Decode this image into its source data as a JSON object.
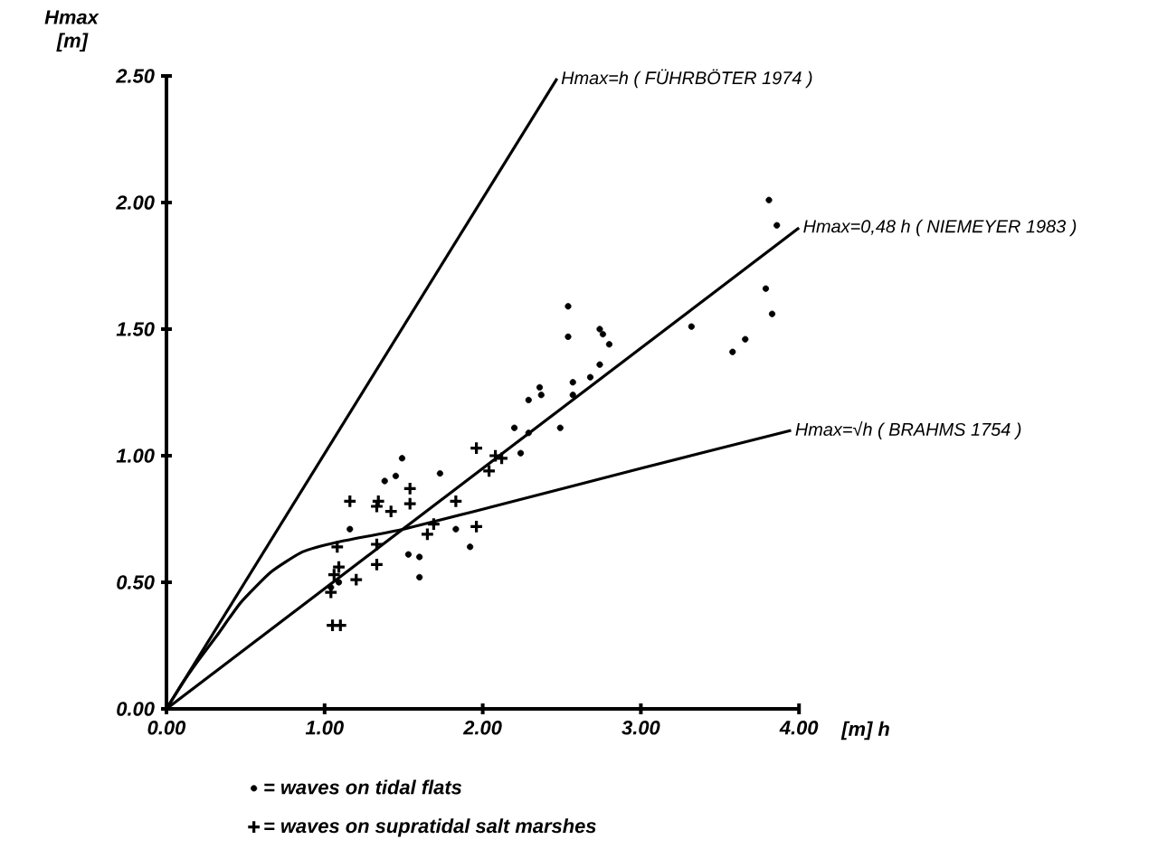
{
  "chart_data": {
    "type": "scatter",
    "xlabel": "[m]  h",
    "ylabel": "Hmax [m]",
    "xlim": [
      0,
      4
    ],
    "ylim": [
      0,
      2.5
    ],
    "xticks": [
      {
        "value": 0,
        "label": "0.00"
      },
      {
        "value": 1,
        "label": "1.00"
      },
      {
        "value": 2,
        "label": "2.00"
      },
      {
        "value": 3,
        "label": "3.00"
      },
      {
        "value": 4,
        "label": "4.00"
      }
    ],
    "yticks": [
      {
        "value": 0,
        "label": "0.00"
      },
      {
        "value": 0.5,
        "label": "0.50"
      },
      {
        "value": 1,
        "label": "1.00"
      },
      {
        "value": 1.5,
        "label": "1.50"
      },
      {
        "value": 2,
        "label": "2.00"
      },
      {
        "value": 2.5,
        "label": "2.50"
      }
    ],
    "grid": false,
    "legend": "bottom",
    "series": [
      {
        "name": "Hmax=h ( FÜHRBÖTER 1974 )",
        "type": "line",
        "color": "#000000",
        "line_style": "solid",
        "x": [
          0,
          2.47
        ],
        "values": [
          0,
          2.49
        ]
      },
      {
        "name": "Hmax=0,48 h ( NIEMEYER 1983 )",
        "type": "line",
        "color": "#000000",
        "line_style": "solid",
        "x": [
          0,
          4.0
        ],
        "values": [
          0,
          1.9
        ]
      },
      {
        "name": "Hmax=√h ( BRAHMS 1754 )",
        "type": "line",
        "color": "#000000",
        "line_style": "solid",
        "x": [
          0,
          0.1,
          0.2,
          0.32,
          0.47,
          0.66,
          0.86,
          1.09,
          1.5,
          2.07,
          3.0,
          3.95
        ],
        "values": [
          0,
          0.1,
          0.19,
          0.29,
          0.42,
          0.54,
          0.62,
          0.66,
          0.71,
          0.8,
          0.95,
          1.1
        ]
      },
      {
        "name": "= waves on tidal flats",
        "color": "#000000",
        "marker": "circle",
        "x": [
          3.81,
          3.86,
          3.79,
          3.83,
          3.66,
          3.58,
          3.32,
          2.54,
          2.54,
          2.74,
          2.76,
          2.8,
          2.74,
          2.68,
          2.57,
          2.57,
          2.49,
          2.36,
          2.37,
          2.29,
          2.2,
          2.29,
          2.24,
          1.73,
          1.49,
          1.38,
          1.45,
          1.16,
          1.04,
          1.09,
          1.53,
          1.6,
          1.6,
          1.83,
          1.92
        ],
        "values": [
          2.01,
          1.91,
          1.66,
          1.56,
          1.46,
          1.41,
          1.51,
          1.59,
          1.47,
          1.5,
          1.48,
          1.44,
          1.36,
          1.31,
          1.29,
          1.24,
          1.11,
          1.27,
          1.24,
          1.22,
          1.11,
          1.09,
          1.01,
          0.93,
          0.99,
          0.9,
          0.92,
          0.71,
          0.48,
          0.5,
          0.61,
          0.6,
          0.52,
          0.71,
          0.64
        ]
      },
      {
        "name": "= waves on supratidal salt marshes",
        "color": "#000000",
        "marker": "cross",
        "x": [
          1.96,
          2.08,
          2.12,
          2.04,
          1.54,
          1.16,
          1.34,
          1.83,
          1.33,
          1.42,
          1.54,
          1.08,
          1.33,
          1.33,
          1.2,
          1.09,
          1.06,
          1.04,
          1.05,
          1.1,
          1.65,
          1.69,
          1.96
        ],
        "values": [
          1.03,
          1.0,
          0.99,
          0.94,
          0.87,
          0.82,
          0.82,
          0.82,
          0.8,
          0.78,
          0.81,
          0.64,
          0.65,
          0.57,
          0.51,
          0.56,
          0.53,
          0.46,
          0.33,
          0.33,
          0.69,
          0.73,
          0.72
        ]
      }
    ]
  }
}
